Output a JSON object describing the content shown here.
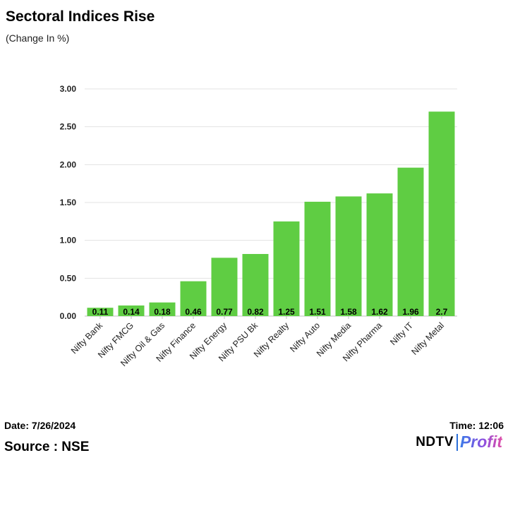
{
  "header": {
    "title": "Sectoral Indices Rise",
    "subtitle": "(Change In %)"
  },
  "footer": {
    "date": "Date: 7/26/2024",
    "source": "Source : NSE",
    "time": "Time: 12:06",
    "logo_ndtv": "NDTV",
    "logo_profit": "Profit"
  },
  "colors": {
    "bar": "#5fcd43",
    "grid": "#e3e3e3",
    "axis": "#bfbfbf"
  },
  "chart_data": {
    "type": "bar",
    "title": "Sectoral Indices Rise",
    "subtitle": "(Change In %)",
    "xlabel": "",
    "ylabel": "",
    "categories": [
      "Nifty Bank",
      "Nifty FMCG",
      "Nifty Oil & Gas",
      "Nifty Finance",
      "Nifty Energy",
      "Nifty PSU Bk",
      "Nifty Realty",
      "Nifty Auto",
      "Nifty Media",
      "Nifty Pharma",
      "Nifty IT",
      "Nifty Metal"
    ],
    "values": [
      0.11,
      0.14,
      0.18,
      0.46,
      0.77,
      0.82,
      1.25,
      1.51,
      1.58,
      1.62,
      1.96,
      2.7
    ],
    "value_labels": [
      "0.11",
      "0.14",
      "0.18",
      "0.46",
      "0.77",
      "0.82",
      "1.25",
      "1.51",
      "1.58",
      "1.62",
      "1.96",
      "2.7"
    ],
    "yticks": [
      "0.00",
      "0.50",
      "1.00",
      "1.50",
      "2.00",
      "2.50",
      "3.00"
    ],
    "ylim": [
      0,
      3
    ],
    "grid": true,
    "legend": "none"
  }
}
